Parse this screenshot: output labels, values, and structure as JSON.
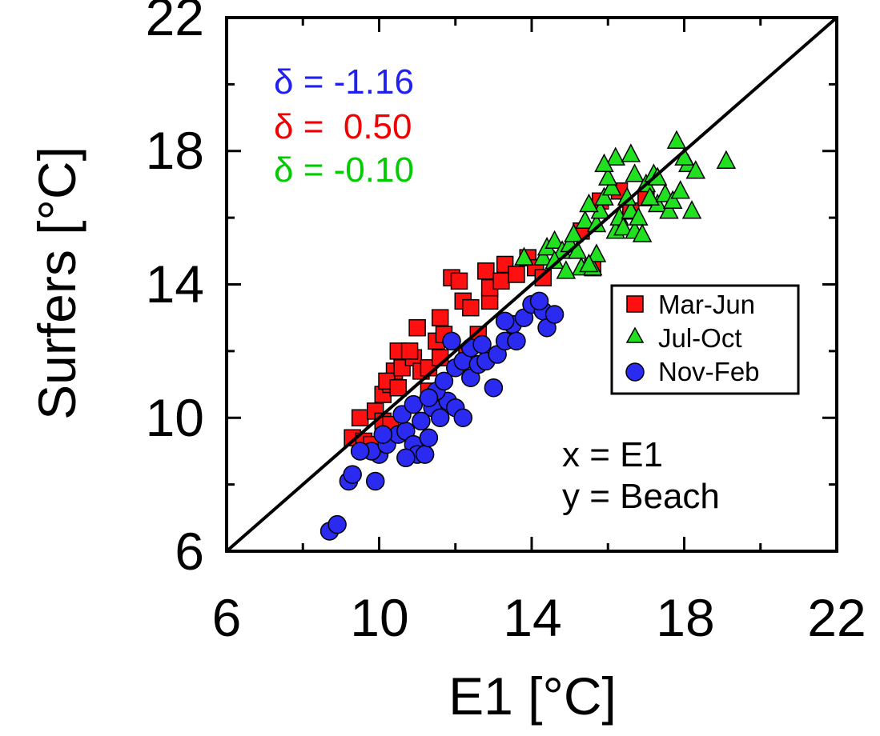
{
  "chart_data": {
    "type": "scatter",
    "xlabel": "E1 [°C]",
    "ylabel": "Surfers [°C]",
    "xlim": [
      6,
      22
    ],
    "ylim": [
      6,
      22
    ],
    "x_ticks": [
      "6",
      "10",
      "14",
      "18",
      "22"
    ],
    "y_ticks": [
      "6",
      "10",
      "14",
      "18",
      "22"
    ],
    "grid": false,
    "legend_position": "right, middle",
    "reference_line": {
      "type": "1:1",
      "from": [
        6,
        6
      ],
      "to": [
        22,
        22
      ]
    },
    "annotations": {
      "deltas": [
        {
          "text": "δ = -1.16",
          "color": "#2020f0"
        },
        {
          "text": "δ =  0.50",
          "color": "#f00000"
        },
        {
          "text": "δ = -0.10",
          "color": "#00cc00"
        }
      ],
      "axis_note": [
        "x = E1",
        "y = Beach"
      ]
    },
    "series": [
      {
        "name": "Mar-Jun",
        "marker": "square",
        "color": "#ff1010",
        "points": [
          [
            9.3,
            9.4
          ],
          [
            9.6,
            9.3
          ],
          [
            9.8,
            9.2
          ],
          [
            9.5,
            10.0
          ],
          [
            9.9,
            10.2
          ],
          [
            10.1,
            9.9
          ],
          [
            10.3,
            9.8
          ],
          [
            10.1,
            10.7
          ],
          [
            10.3,
            11.0
          ],
          [
            10.4,
            11.4
          ],
          [
            10.2,
            11.1
          ],
          [
            10.5,
            10.9
          ],
          [
            10.6,
            11.5
          ],
          [
            10.9,
            11.8
          ],
          [
            10.5,
            12.0
          ],
          [
            10.8,
            12.0
          ],
          [
            11.1,
            11.4
          ],
          [
            11.3,
            11.5
          ],
          [
            11.0,
            12.7
          ],
          [
            11.5,
            12.3
          ],
          [
            11.6,
            11.8
          ],
          [
            11.3,
            10.8
          ],
          [
            11.7,
            12.5
          ],
          [
            11.6,
            13.0
          ],
          [
            11.9,
            14.2
          ],
          [
            12.1,
            14.1
          ],
          [
            12.2,
            13.5
          ],
          [
            12.4,
            13.3
          ],
          [
            12.6,
            12.5
          ],
          [
            12.9,
            13.5
          ],
          [
            12.9,
            13.9
          ],
          [
            12.8,
            14.4
          ],
          [
            13.3,
            14.6
          ],
          [
            13.2,
            14.1
          ],
          [
            13.6,
            14.3
          ],
          [
            13.9,
            14.8
          ],
          [
            14.1,
            14.5
          ],
          [
            12.3,
            11.9
          ],
          [
            14.3,
            14.2
          ],
          [
            15.3,
            15.6
          ],
          [
            15.6,
            14.5
          ],
          [
            15.8,
            16.5
          ],
          [
            16.3,
            16.8
          ],
          [
            16.6,
            16.2
          ],
          [
            17.0,
            16.6
          ]
        ]
      },
      {
        "name": "Jul-Oct",
        "marker": "triangle",
        "color": "#20e020",
        "points": [
          [
            13.8,
            14.8
          ],
          [
            14.3,
            14.8
          ],
          [
            14.4,
            15.1
          ],
          [
            14.6,
            15.3
          ],
          [
            14.8,
            15.0
          ],
          [
            15.0,
            15.2
          ],
          [
            15.1,
            15.5
          ],
          [
            14.6,
            14.7
          ],
          [
            15.2,
            15.0
          ],
          [
            15.3,
            14.5
          ],
          [
            15.6,
            14.5
          ],
          [
            15.7,
            14.9
          ],
          [
            14.9,
            14.4
          ],
          [
            15.5,
            14.6
          ],
          [
            15.4,
            15.9
          ],
          [
            15.7,
            15.8
          ],
          [
            15.8,
            16.2
          ],
          [
            15.5,
            16.4
          ],
          [
            15.9,
            16.6
          ],
          [
            16.1,
            16.9
          ],
          [
            16.0,
            17.2
          ],
          [
            16.2,
            15.6
          ],
          [
            16.3,
            16.0
          ],
          [
            16.4,
            15.7
          ],
          [
            16.6,
            16.2
          ],
          [
            16.7,
            15.6
          ],
          [
            16.8,
            16.0
          ],
          [
            16.9,
            15.5
          ],
          [
            16.5,
            16.6
          ],
          [
            16.7,
            17.3
          ],
          [
            17.0,
            17.0
          ],
          [
            17.2,
            17.3
          ],
          [
            17.3,
            16.4
          ],
          [
            17.1,
            16.6
          ],
          [
            17.5,
            16.7
          ],
          [
            17.6,
            16.2
          ],
          [
            17.7,
            16.5
          ],
          [
            17.9,
            16.8
          ],
          [
            18.1,
            17.6
          ],
          [
            18.2,
            16.2
          ],
          [
            18.0,
            17.8
          ],
          [
            17.8,
            18.3
          ],
          [
            16.2,
            17.8
          ],
          [
            16.6,
            17.9
          ],
          [
            15.9,
            17.6
          ],
          [
            19.1,
            17.7
          ],
          [
            17.3,
            17.2
          ],
          [
            18.3,
            17.4
          ]
        ]
      },
      {
        "name": "Nov-Feb",
        "marker": "circle",
        "color": "#2a2af0",
        "points": [
          [
            8.7,
            6.6
          ],
          [
            8.9,
            6.8
          ],
          [
            9.2,
            8.1
          ],
          [
            9.9,
            8.1
          ],
          [
            9.3,
            8.3
          ],
          [
            10.0,
            8.9
          ],
          [
            9.8,
            9.0
          ],
          [
            10.2,
            9.2
          ],
          [
            10.5,
            9.5
          ],
          [
            10.7,
            9.6
          ],
          [
            10.9,
            9.2
          ],
          [
            11.0,
            8.9
          ],
          [
            11.2,
            8.9
          ],
          [
            10.7,
            8.8
          ],
          [
            11.3,
            9.4
          ],
          [
            10.1,
            9.5
          ],
          [
            11.1,
            9.9
          ],
          [
            11.4,
            10.3
          ],
          [
            11.6,
            10.0
          ],
          [
            11.8,
            10.5
          ],
          [
            12.0,
            10.3
          ],
          [
            12.2,
            10.0
          ],
          [
            11.5,
            10.8
          ],
          [
            11.7,
            11.1
          ],
          [
            12.0,
            11.5
          ],
          [
            12.2,
            11.7
          ],
          [
            12.4,
            11.2
          ],
          [
            12.6,
            11.6
          ],
          [
            12.4,
            12.1
          ],
          [
            12.8,
            11.7
          ],
          [
            13.0,
            10.9
          ],
          [
            13.1,
            11.9
          ],
          [
            13.3,
            12.3
          ],
          [
            13.5,
            12.8
          ],
          [
            13.6,
            12.3
          ],
          [
            13.8,
            13.0
          ],
          [
            14.0,
            13.4
          ],
          [
            14.3,
            13.2
          ],
          [
            14.4,
            12.7
          ],
          [
            14.6,
            13.1
          ],
          [
            14.2,
            13.5
          ],
          [
            13.3,
            12.9
          ],
          [
            11.9,
            12.3
          ],
          [
            10.6,
            10.1
          ],
          [
            10.9,
            10.4
          ],
          [
            11.3,
            10.6
          ],
          [
            9.5,
            9.0
          ],
          [
            12.7,
            12.2
          ]
        ]
      }
    ]
  }
}
